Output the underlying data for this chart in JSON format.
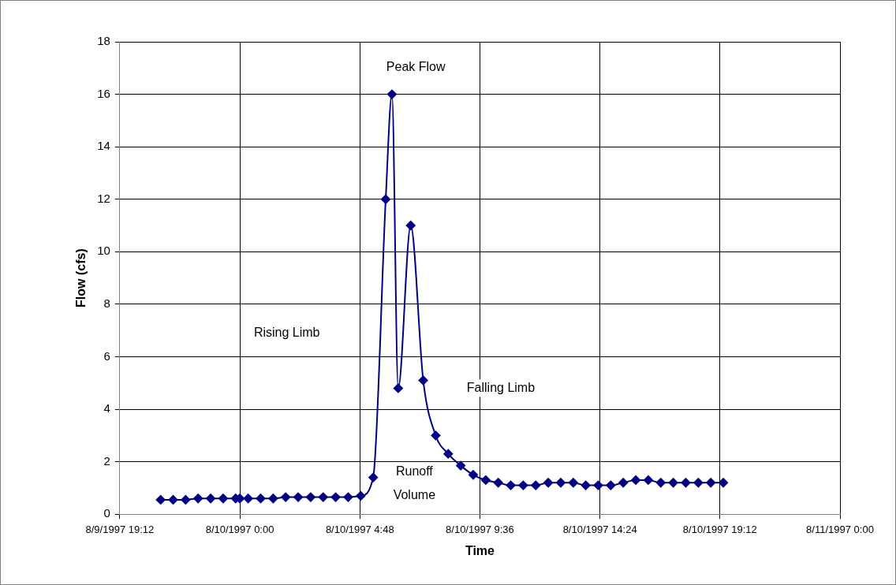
{
  "chart_data": {
    "type": "line",
    "xlabel": "Time",
    "ylabel": "Flow (cfs)",
    "x": [
      "1997-08-09T20:50",
      "1997-08-09T21:20",
      "1997-08-09T21:50",
      "1997-08-09T22:20",
      "1997-08-09T22:50",
      "1997-08-09T23:20",
      "1997-08-09T23:50",
      "1997-08-10T00:00",
      "1997-08-10T00:20",
      "1997-08-10T00:50",
      "1997-08-10T01:20",
      "1997-08-10T01:50",
      "1997-08-10T02:20",
      "1997-08-10T02:50",
      "1997-08-10T03:20",
      "1997-08-10T03:50",
      "1997-08-10T04:20",
      "1997-08-10T04:50",
      "1997-08-10T05:20",
      "1997-08-10T05:50",
      "1997-08-10T06:05",
      "1997-08-10T06:20",
      "1997-08-10T06:50",
      "1997-08-10T07:20",
      "1997-08-10T07:50",
      "1997-08-10T08:20",
      "1997-08-10T08:50",
      "1997-08-10T09:20",
      "1997-08-10T09:50",
      "1997-08-10T10:20",
      "1997-08-10T10:50",
      "1997-08-10T11:20",
      "1997-08-10T11:50",
      "1997-08-10T12:20",
      "1997-08-10T12:50",
      "1997-08-10T13:20",
      "1997-08-10T13:50",
      "1997-08-10T14:20",
      "1997-08-10T14:50",
      "1997-08-10T15:20",
      "1997-08-10T15:50",
      "1997-08-10T16:20",
      "1997-08-10T16:50",
      "1997-08-10T17:20",
      "1997-08-10T17:50",
      "1997-08-10T18:20",
      "1997-08-10T18:50",
      "1997-08-10T19:20"
    ],
    "series": [
      {
        "color": "#000080",
        "values": [
          0.55,
          0.55,
          0.55,
          0.6,
          0.6,
          0.6,
          0.6,
          0.6,
          0.6,
          0.6,
          0.6,
          0.65,
          0.65,
          0.65,
          0.65,
          0.65,
          0.65,
          0.7,
          1.4,
          12,
          16,
          4.8,
          11,
          5.1,
          3.0,
          2.3,
          1.85,
          1.5,
          1.3,
          1.2,
          1.1,
          1.1,
          1.1,
          1.2,
          1.2,
          1.2,
          1.1,
          1.1,
          1.1,
          1.2,
          1.3,
          1.3,
          1.2,
          1.2,
          1.2,
          1.2,
          1.2,
          1.2
        ]
      }
    ],
    "xlim": [
      "1997-08-09T19:12",
      "1997-08-11T00:00"
    ],
    "xticks": [
      {
        "value": "1997-08-09T19:12",
        "label": "8/9/1997 19:12"
      },
      {
        "value": "1997-08-10T00:00",
        "label": "8/10/1997 0:00"
      },
      {
        "value": "1997-08-10T04:48",
        "label": "8/10/1997 4:48"
      },
      {
        "value": "1997-08-10T09:36",
        "label": "8/10/1997 9:36"
      },
      {
        "value": "1997-08-10T14:24",
        "label": "8/10/1997 14:24"
      },
      {
        "value": "1997-08-10T19:12",
        "label": "8/10/1997 19:12"
      },
      {
        "value": "1997-08-11T00:00",
        "label": "8/11/1997 0:00"
      }
    ],
    "ylim": [
      0,
      18
    ],
    "yticks": [
      0,
      2,
      4,
      6,
      8,
      10,
      12,
      14,
      16,
      18
    ],
    "grid": true,
    "legend": false,
    "marker": "diamond",
    "line_style": "solid",
    "annotations": [
      "Peak Flow",
      "Rising Limb",
      "Falling Limb",
      "Runoff\nVolume"
    ]
  }
}
